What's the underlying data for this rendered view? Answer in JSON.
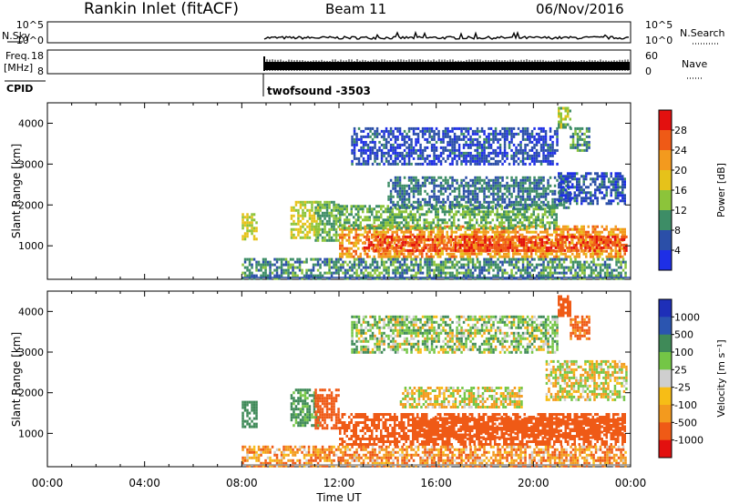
{
  "header": {
    "station": "Rankin Inlet (fitACF)",
    "beam": "Beam 11",
    "date": "06/Nov/2016"
  },
  "top_panels": {
    "nsky": {
      "label": "N.Sky",
      "tick_top": "10^5",
      "tick_bottom": "10^0",
      "right_label": "N.Search",
      "right_tick_top": "10^5",
      "right_tick_bottom": "10^0"
    },
    "freq": {
      "label_line1": "Freq.",
      "label_line2": "[MHz]",
      "tick_top": "18",
      "tick_bottom": "8",
      "right_label": "Nave",
      "right_tick_top": "60",
      "right_tick_bottom": "0"
    },
    "cpid": {
      "label": "CPID",
      "program": "twofsound -3503"
    }
  },
  "colors": {
    "power": [
      "#1e2fe6",
      "#2b4fa8",
      "#3d8d66",
      "#8cc43a",
      "#e6c21a",
      "#f39a1e",
      "#ef5a16",
      "#e3100f"
    ],
    "velocity": [
      "#e3100f",
      "#ef5a16",
      "#f39a1e",
      "#f7bd16",
      "#cfcfcf",
      "#74c646",
      "#3f8a58",
      "#2b55b0",
      "#1e2fb8"
    ]
  },
  "chart_data": [
    {
      "type": "heatmap",
      "name": "power",
      "title": "",
      "xlabel": "",
      "ylabel": "Slant Range [km]",
      "x_ticks": [
        "00:00",
        "04:00",
        "08:00",
        "12:00",
        "16:00",
        "20:00",
        "00:00"
      ],
      "xlim_hours": [
        0,
        24
      ],
      "ylim_km": [
        180,
        4500
      ],
      "y_ticks": [
        1000,
        2000,
        3000,
        4000
      ],
      "colorbar": {
        "label": "Power [dB]",
        "ticks": [
          "4",
          "8",
          "12",
          "16",
          "20",
          "24",
          "28"
        ],
        "range": [
          0,
          32
        ]
      },
      "regions": [
        {
          "t0": 8.0,
          "t1": 8.6,
          "r0": 1150,
          "r1": 1800,
          "value": 16
        },
        {
          "t0": 10.0,
          "t1": 11.2,
          "r0": 1200,
          "r1": 2100,
          "value": 16
        },
        {
          "t0": 11.0,
          "t1": 12.0,
          "r0": 1100,
          "r1": 2100,
          "value": 12
        },
        {
          "t0": 12.0,
          "t1": 23.8,
          "r0": 700,
          "r1": 1500,
          "value": 22
        },
        {
          "t0": 13.0,
          "t1": 23.8,
          "r0": 850,
          "r1": 1250,
          "value": 27
        },
        {
          "t0": 12.0,
          "t1": 21.0,
          "r0": 1400,
          "r1": 2000,
          "value": 12
        },
        {
          "t0": 14.0,
          "t1": 21.5,
          "r0": 1900,
          "r1": 2700,
          "value": 8
        },
        {
          "t0": 21.0,
          "t1": 23.8,
          "r0": 2000,
          "r1": 2800,
          "value": 6
        },
        {
          "t0": 12.5,
          "t1": 21.0,
          "r0": 3000,
          "r1": 3900,
          "value": 5
        },
        {
          "t0": 21.5,
          "t1": 22.3,
          "r0": 3300,
          "r1": 3900,
          "value": 10
        },
        {
          "t0": 21.0,
          "t1": 21.5,
          "r0": 3900,
          "r1": 4400,
          "value": 14
        },
        {
          "t0": 8.0,
          "t1": 23.8,
          "r0": 180,
          "r1": 700,
          "value": 10
        }
      ]
    },
    {
      "type": "heatmap",
      "name": "velocity",
      "title": "",
      "xlabel": "Time UT",
      "ylabel": "Slant Range [km]",
      "x_ticks": [
        "00:00",
        "04:00",
        "08:00",
        "12:00",
        "16:00",
        "20:00",
        "00:00"
      ],
      "xlim_hours": [
        0,
        24
      ],
      "ylim_km": [
        180,
        4500
      ],
      "y_ticks": [
        1000,
        2000,
        3000,
        4000
      ],
      "colorbar": {
        "label": "Velocity [m s⁻¹]",
        "ticks": [
          "1000",
          "500",
          "100",
          "25",
          "-25",
          "-100",
          "-500",
          "-1000"
        ],
        "range": [
          -1000,
          1000
        ]
      },
      "regions": [
        {
          "t0": 8.0,
          "t1": 8.6,
          "r0": 1150,
          "r1": 1800,
          "value": 300
        },
        {
          "t0": 10.0,
          "t1": 11.2,
          "r0": 1200,
          "r1": 2100,
          "value": 150
        },
        {
          "t0": 11.0,
          "t1": 12.0,
          "r0": 1100,
          "r1": 2100,
          "value": -200
        },
        {
          "t0": 12.0,
          "t1": 23.8,
          "r0": 700,
          "r1": 1500,
          "value": -250
        },
        {
          "t0": 15.0,
          "t1": 23.8,
          "r0": 900,
          "r1": 1400,
          "value": -350
        },
        {
          "t0": 14.5,
          "t1": 19.5,
          "r0": 1650,
          "r1": 2150,
          "value": 0
        },
        {
          "t0": 20.5,
          "t1": 23.8,
          "r0": 1800,
          "r1": 2800,
          "value": 0
        },
        {
          "t0": 12.5,
          "t1": 21.0,
          "r0": 3000,
          "r1": 3900,
          "value": 60
        },
        {
          "t0": 21.0,
          "t1": 21.5,
          "r0": 3900,
          "r1": 4400,
          "value": -400
        },
        {
          "t0": 21.5,
          "t1": 22.3,
          "r0": 3300,
          "r1": 3900,
          "value": -150
        },
        {
          "t0": 8.0,
          "t1": 23.8,
          "r0": 180,
          "r1": 700,
          "value": -80
        }
      ]
    }
  ]
}
